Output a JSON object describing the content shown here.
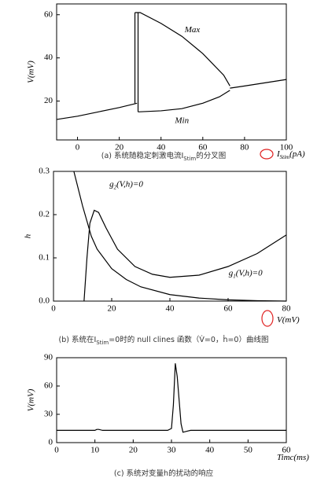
{
  "chart_data": [
    {
      "type": "line",
      "xlim": [
        -10,
        100
      ],
      "xticks": [
        0,
        20,
        40,
        60,
        80,
        100
      ],
      "ylim": [
        2,
        65
      ],
      "yticks": [
        20,
        40,
        60
      ],
      "x_label": [
        "I",
        "Stim",
        "(pA)"
      ],
      "y_label": "V(mV)",
      "caption": [
        "(a) 系统随稳定刺激电流I",
        "Stim",
        "的分叉图"
      ],
      "color": "#000000",
      "series": [
        {
          "x": [
            -10,
            0,
            10,
            20,
            28.5
          ],
          "values": [
            11.5,
            13,
            15,
            17,
            19
          ]
        },
        {
          "name": "Max",
          "x": [
            27.5,
            30,
            40,
            50,
            60,
            70,
            73
          ],
          "values": [
            61,
            61,
            56,
            50,
            42,
            32,
            27
          ]
        },
        {
          "name": "Min",
          "x": [
            29,
            40,
            50,
            60,
            68,
            73
          ],
          "values": [
            15,
            15.5,
            16.5,
            19,
            22,
            25
          ]
        },
        {
          "x": [
            73,
            80,
            90,
            100
          ],
          "values": [
            26,
            27,
            28.5,
            30
          ]
        },
        {
          "x": [
            27.5,
            27.5
          ],
          "values": [
            19,
            61
          ]
        },
        {
          "x": [
            29,
            29
          ],
          "values": [
            15,
            61
          ]
        }
      ],
      "annotations": [
        {
          "text": [
            "Max"
          ],
          "x": 55,
          "y": 53
        },
        {
          "text": [
            "Min"
          ],
          "x": 50,
          "y": 11
        }
      ]
    },
    {
      "type": "line",
      "xlim": [
        0,
        80
      ],
      "xticks": [
        0,
        20,
        40,
        60,
        80
      ],
      "ylim": [
        0,
        0.3
      ],
      "yticks": [
        {
          "value": 0,
          "label": "0.0"
        },
        0.1,
        0.2,
        0.3
      ],
      "x_label": [
        "V(mV)"
      ],
      "y_label": "h",
      "caption": [
        "(b) 系统在I",
        "Stim",
        "=0时的 null clines 函数（V̇=0，ḣ=0）曲线图"
      ],
      "color": "#000000",
      "series": [
        {
          "x": [
            7,
            10,
            13,
            15,
            20,
            25,
            30,
            40,
            50,
            60,
            70,
            80
          ],
          "values": [
            0.3,
            0.22,
            0.15,
            0.12,
            0.075,
            0.05,
            0.033,
            0.015,
            0.007,
            0.003,
            0.001,
            0
          ]
        },
        {
          "x": [
            10.5,
            11.5,
            12.5,
            14,
            15.5,
            18,
            22,
            28,
            34,
            40,
            50,
            60,
            70,
            80
          ],
          "values": [
            0,
            0.1,
            0.18,
            0.21,
            0.205,
            0.17,
            0.12,
            0.08,
            0.062,
            0.055,
            0.06,
            0.08,
            0.11,
            0.153
          ]
        }
      ],
      "annotations": [
        {
          "text": [
            "g",
            "2",
            "(V,h)=0"
          ],
          "x": 25,
          "y": 0.27
        },
        {
          "text": [
            "g",
            "1",
            "(V,h)=0"
          ],
          "x": 66,
          "y": 0.065
        }
      ]
    },
    {
      "type": "line",
      "xlim": [
        0,
        60
      ],
      "xticks": [
        0,
        10,
        20,
        30,
        40,
        50,
        60
      ],
      "ylim": [
        0,
        90
      ],
      "yticks": [
        0,
        30,
        60,
        90
      ],
      "x_label": [
        "Timc(ms)"
      ],
      "y_label": "V(mV)",
      "caption": [
        "(c) 系统对变量h的扰动的响应"
      ],
      "color": "#000000",
      "series": [
        {
          "x": [
            0,
            10,
            10.5,
            11,
            12,
            20,
            29,
            30,
            30.5,
            31,
            31.5,
            32,
            32.5,
            33,
            34,
            35,
            40,
            50,
            60
          ],
          "values": [
            13,
            13,
            14,
            14,
            13,
            13,
            13,
            15,
            40,
            84,
            70,
            45,
            20,
            11,
            12,
            13,
            13,
            13,
            13
          ]
        }
      ],
      "annotations": []
    }
  ]
}
